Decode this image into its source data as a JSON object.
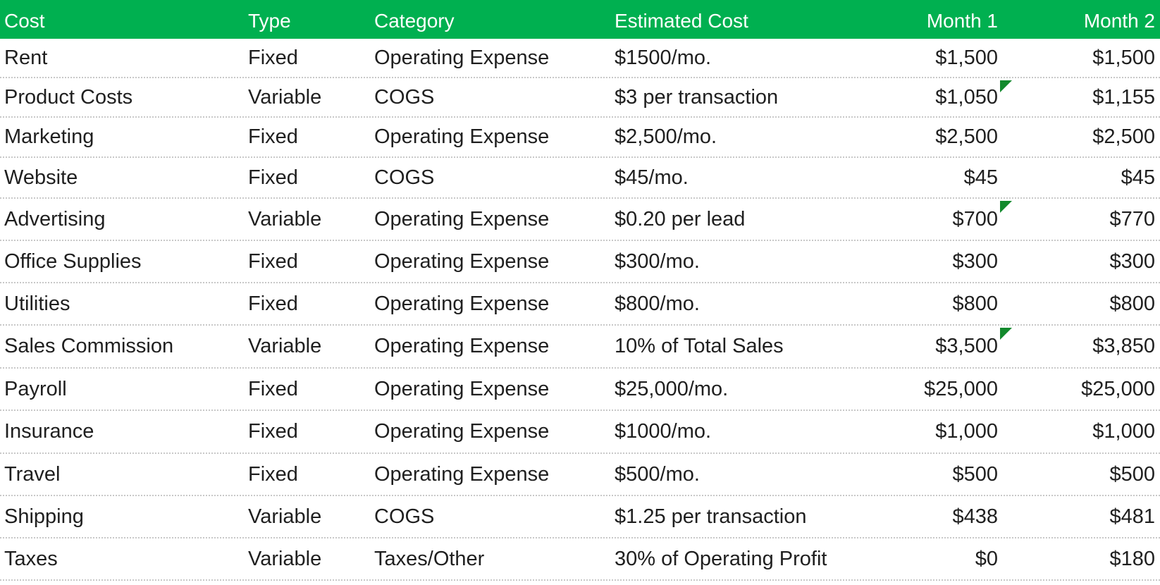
{
  "headers": {
    "cost": "Cost",
    "type": "Type",
    "category": "Category",
    "estimated_cost": "Estimated Cost",
    "month1": "Month 1",
    "month2": "Month 2"
  },
  "rows": [
    {
      "cost": "Rent",
      "type": "Fixed",
      "category": "Operating Expense",
      "estimated_cost": "$1500/mo.",
      "month1": "$1,500",
      "month2": "$1,500",
      "comment_marker": false
    },
    {
      "cost": "Product Costs",
      "type": "Variable",
      "category": "COGS",
      "estimated_cost": "$3 per transaction",
      "month1": "$1,050",
      "month2": "$1,155",
      "comment_marker": true
    },
    {
      "cost": "Marketing",
      "type": "Fixed",
      "category": "Operating Expense",
      "estimated_cost": "$2,500/mo.",
      "month1": "$2,500",
      "month2": "$2,500",
      "comment_marker": false
    },
    {
      "cost": "Website",
      "type": "Fixed",
      "category": "COGS",
      "estimated_cost": "$45/mo.",
      "month1": "$45",
      "month2": "$45",
      "comment_marker": false
    },
    {
      "cost": "Advertising",
      "type": "Variable",
      "category": "Operating Expense",
      "estimated_cost": "$0.20 per lead",
      "month1": "$700",
      "month2": "$770",
      "comment_marker": true
    },
    {
      "cost": "Office Supplies",
      "type": "Fixed",
      "category": "Operating Expense",
      "estimated_cost": "$300/mo.",
      "month1": "$300",
      "month2": "$300",
      "comment_marker": false
    },
    {
      "cost": "Utilities",
      "type": "Fixed",
      "category": "Operating Expense",
      "estimated_cost": "$800/mo.",
      "month1": "$800",
      "month2": "$800",
      "comment_marker": false
    },
    {
      "cost": "Sales Commission",
      "type": "Variable",
      "category": "Operating Expense",
      "estimated_cost": "10% of Total Sales",
      "month1": "$3,500",
      "month2": "$3,850",
      "comment_marker": true
    },
    {
      "cost": "Payroll",
      "type": "Fixed",
      "category": "Operating Expense",
      "estimated_cost": "$25,000/mo.",
      "month1": "$25,000",
      "month2": "$25,000",
      "comment_marker": false
    },
    {
      "cost": "Insurance",
      "type": "Fixed",
      "category": "Operating Expense",
      "estimated_cost": "$1000/mo.",
      "month1": "$1,000",
      "month2": "$1,000",
      "comment_marker": false
    },
    {
      "cost": "Travel",
      "type": "Fixed",
      "category": "Operating Expense",
      "estimated_cost": "$500/mo.",
      "month1": "$500",
      "month2": "$500",
      "comment_marker": false
    },
    {
      "cost": "Shipping",
      "type": "Variable",
      "category": "COGS",
      "estimated_cost": "$1.25 per transaction",
      "month1": "$438",
      "month2": "$481",
      "comment_marker": false
    },
    {
      "cost": "Taxes",
      "type": "Variable",
      "category": "Taxes/Other",
      "estimated_cost": "30% of Operating Profit",
      "month1": "$0",
      "month2": "$180",
      "comment_marker": false
    }
  ],
  "colors": {
    "header_background": "#00b050",
    "header_text": "#ffffff",
    "comment_marker": "#12892c"
  }
}
